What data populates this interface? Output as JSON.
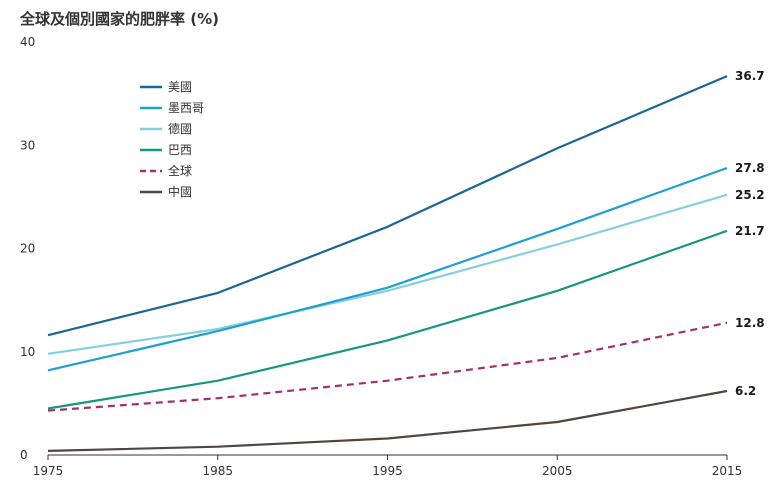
{
  "chart_data": {
    "type": "line",
    "title": "全球及個別國家的肥胖率 (%)",
    "xlabel": "",
    "ylabel": "",
    "x": [
      1975,
      1985,
      1995,
      2005,
      2015
    ],
    "xticks": [
      "1975",
      "1985",
      "1995",
      "2005",
      "2015"
    ],
    "yticks": [
      "0",
      "10",
      "20",
      "30",
      "40"
    ],
    "ylim": [
      0,
      40
    ],
    "grid": false,
    "legend_position": "top-left",
    "series": [
      {
        "name": "美國",
        "color": "#1b6794",
        "dash": false,
        "values": [
          11.6,
          15.7,
          22.1,
          29.7,
          36.7
        ],
        "end_label": "36.7"
      },
      {
        "name": "墨西哥",
        "color": "#1da1d0",
        "dash": false,
        "values": [
          8.2,
          12.0,
          16.2,
          21.9,
          27.8
        ],
        "end_label": "27.8"
      },
      {
        "name": "德國",
        "color": "#86cfe3",
        "dash": false,
        "values": [
          9.8,
          12.2,
          15.9,
          20.4,
          25.2
        ],
        "end_label": "25.2"
      },
      {
        "name": "巴西",
        "color": "#18977a",
        "dash": false,
        "values": [
          4.5,
          7.2,
          11.1,
          15.9,
          21.7
        ],
        "end_label": "21.7"
      },
      {
        "name": "全球",
        "color": "#a4316d",
        "dash": true,
        "values": [
          4.3,
          5.5,
          7.2,
          9.4,
          12.8
        ],
        "end_label": "12.8"
      },
      {
        "name": "中國",
        "color": "#4f4642",
        "dash": false,
        "values": [
          0.4,
          0.8,
          1.6,
          3.2,
          6.2
        ],
        "end_label": "6.2"
      }
    ]
  }
}
